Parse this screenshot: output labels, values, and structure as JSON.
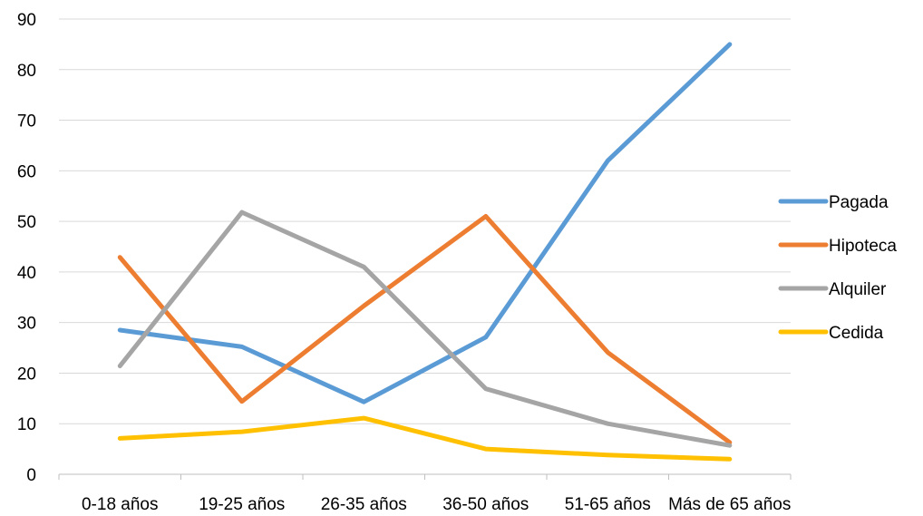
{
  "chart_data": {
    "type": "line",
    "title": "",
    "xlabel": "",
    "ylabel": "",
    "categories": [
      "0-18 años",
      "19-25 años",
      "26-35 años",
      "36-50 años",
      "51-65 años",
      "Más de 65 años"
    ],
    "ylim": [
      0,
      90
    ],
    "yticks": [
      0,
      10,
      20,
      30,
      40,
      50,
      60,
      70,
      80,
      90
    ],
    "grid": true,
    "legend_position": "right",
    "series": [
      {
        "name": "Pagada",
        "color": "#5B9BD5",
        "values": [
          28.5,
          25.2,
          14.3,
          27.1,
          62.0,
          85.0
        ]
      },
      {
        "name": "Hipoteca",
        "color": "#ED7D31",
        "values": [
          42.9,
          14.4,
          33.3,
          51.0,
          24.1,
          6.3
        ]
      },
      {
        "name": "Alquiler",
        "color": "#A5A5A5",
        "values": [
          21.4,
          51.8,
          41.0,
          16.9,
          10.0,
          5.7
        ]
      },
      {
        "name": "Cedida",
        "color": "#FFC000",
        "values": [
          7.1,
          8.4,
          11.1,
          5.0,
          3.8,
          3.0
        ]
      }
    ]
  }
}
